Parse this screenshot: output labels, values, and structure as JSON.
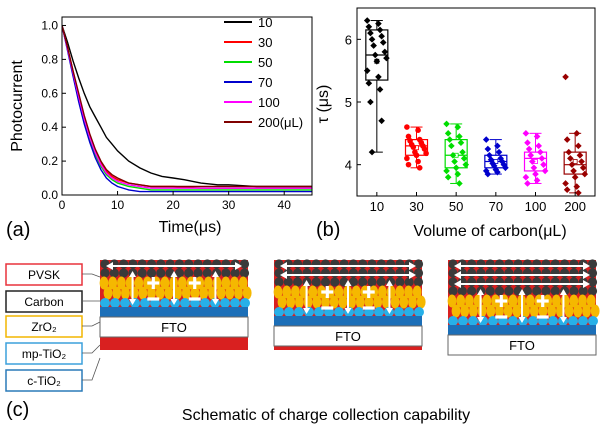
{
  "panel_a": {
    "label": "(a)",
    "xlabel": "Time(μs)",
    "ylabel": "Photocurrent",
    "xticks": [
      "0",
      "10",
      "20",
      "30",
      "40"
    ],
    "yticks": [
      "0.0",
      "0.2",
      "0.4",
      "0.6",
      "0.8",
      "1.0"
    ],
    "legend_labels": [
      "10",
      "30",
      "50",
      "70",
      "100",
      "200(μL)"
    ]
  },
  "panel_b": {
    "label": "(b)",
    "xlabel": "Volume of carbon(μL)",
    "ylabel": "τ (μs)",
    "xticks": [
      "10",
      "30",
      "50",
      "70",
      "100",
      "200"
    ],
    "yticks": [
      "4",
      "5",
      "6"
    ]
  },
  "panel_c": {
    "label": "(c)",
    "caption": "Schematic of charge collection capability",
    "layer_labels": [
      "PVSK",
      "Carbon",
      "ZrO₂",
      "mp-TiO₂",
      "c-TiO₂"
    ],
    "substrate_label": "FTO"
  },
  "chart_data": [
    {
      "type": "line",
      "title": "",
      "xlabel": "Time(μs)",
      "ylabel": "Photocurrent",
      "xlim": [
        0,
        45
      ],
      "ylim": [
        0,
        1.05
      ],
      "legend_position": "top-right",
      "series": [
        {
          "name": "10",
          "color": "#000000",
          "x": [
            0,
            1,
            2,
            3,
            4,
            5,
            6,
            7,
            8,
            9,
            10,
            12,
            14,
            16,
            18,
            20,
            22,
            25,
            28,
            30,
            35,
            40,
            45
          ],
          "y": [
            1.0,
            0.9,
            0.79,
            0.69,
            0.6,
            0.52,
            0.46,
            0.4,
            0.34,
            0.3,
            0.26,
            0.2,
            0.16,
            0.13,
            0.11,
            0.1,
            0.09,
            0.07,
            0.06,
            0.06,
            0.05,
            0.05,
            0.05
          ]
        },
        {
          "name": "30",
          "color": "#ff0000",
          "x": [
            0,
            1,
            2,
            3,
            4,
            5,
            6,
            7,
            8,
            9,
            10,
            12,
            14,
            16,
            18,
            20,
            25,
            30,
            35,
            40,
            45
          ],
          "y": [
            1.0,
            0.87,
            0.73,
            0.59,
            0.46,
            0.35,
            0.26,
            0.19,
            0.14,
            0.11,
            0.09,
            0.07,
            0.06,
            0.05,
            0.05,
            0.05,
            0.04,
            0.04,
            0.04,
            0.04,
            0.04
          ]
        },
        {
          "name": "50",
          "color": "#00dd00",
          "x": [
            0,
            1,
            2,
            3,
            4,
            5,
            6,
            7,
            8,
            9,
            10,
            12,
            14,
            16,
            18,
            20,
            25,
            30,
            35,
            40,
            45
          ],
          "y": [
            1.0,
            0.86,
            0.71,
            0.57,
            0.44,
            0.33,
            0.24,
            0.17,
            0.12,
            0.09,
            0.07,
            0.05,
            0.04,
            0.03,
            0.03,
            0.03,
            0.03,
            0.03,
            0.03,
            0.03,
            0.03
          ]
        },
        {
          "name": "70",
          "color": "#0000cc",
          "x": [
            0,
            1,
            2,
            3,
            4,
            5,
            6,
            7,
            8,
            9,
            10,
            12,
            14,
            16,
            18,
            20,
            25,
            30,
            35,
            40,
            45
          ],
          "y": [
            1.0,
            0.85,
            0.7,
            0.55,
            0.42,
            0.31,
            0.22,
            0.15,
            0.1,
            0.07,
            0.05,
            0.03,
            0.02,
            0.02,
            0.02,
            0.02,
            0.02,
            0.02,
            0.02,
            0.02,
            0.02
          ]
        },
        {
          "name": "100",
          "color": "#ff00ff",
          "x": [
            0,
            1,
            2,
            3,
            4,
            5,
            6,
            7,
            8,
            9,
            10,
            12,
            14,
            16,
            18,
            20,
            25,
            30,
            35,
            40,
            45
          ],
          "y": [
            1.0,
            0.86,
            0.72,
            0.58,
            0.45,
            0.34,
            0.25,
            0.18,
            0.13,
            0.1,
            0.08,
            0.06,
            0.05,
            0.04,
            0.04,
            0.04,
            0.04,
            0.04,
            0.04,
            0.04,
            0.04
          ]
        },
        {
          "name": "200(μL)",
          "color": "#800000",
          "x": [
            0,
            1,
            2,
            3,
            4,
            5,
            6,
            7,
            8,
            9,
            10,
            12,
            14,
            16,
            18,
            20,
            25,
            30,
            35,
            40,
            45
          ],
          "y": [
            1.0,
            0.87,
            0.73,
            0.6,
            0.47,
            0.36,
            0.27,
            0.2,
            0.15,
            0.12,
            0.1,
            0.07,
            0.06,
            0.05,
            0.05,
            0.05,
            0.05,
            0.05,
            0.05,
            0.05,
            0.05
          ]
        }
      ]
    },
    {
      "type": "scatter",
      "subtype": "box-plot-with-points",
      "title": "",
      "xlabel": "Volume of carbon(μL)",
      "ylabel": "τ (μs)",
      "ylim": [
        3.5,
        6.5
      ],
      "categories": [
        "10",
        "30",
        "50",
        "70",
        "100",
        "200"
      ],
      "series": [
        {
          "category": "10",
          "color": "#000000",
          "box": {
            "q1": 5.35,
            "median": 5.75,
            "q3": 6.15,
            "mean": 5.65,
            "whisker_low": 4.2,
            "whisker_high": 6.3
          },
          "points": [
            6.3,
            6.25,
            6.2,
            6.15,
            6.1,
            6.05,
            6.0,
            5.95,
            5.9,
            5.8,
            5.75,
            5.7,
            5.65,
            5.5,
            5.4,
            5.3,
            5.2,
            5.0,
            4.7,
            4.2
          ]
        },
        {
          "category": "30",
          "color": "#ff0000",
          "box": {
            "q1": 4.15,
            "median": 4.3,
            "q3": 4.4,
            "mean": 4.27,
            "whisker_low": 3.95,
            "whisker_high": 4.6
          },
          "points": [
            4.6,
            4.55,
            4.45,
            4.4,
            4.38,
            4.35,
            4.32,
            4.3,
            4.28,
            4.25,
            4.2,
            4.18,
            4.15,
            4.1,
            4.05,
            4.0,
            3.95
          ]
        },
        {
          "category": "50",
          "color": "#00dd00",
          "box": {
            "q1": 3.95,
            "median": 4.15,
            "q3": 4.4,
            "mean": 4.15,
            "whisker_low": 3.7,
            "whisker_high": 4.65
          },
          "points": [
            4.65,
            4.6,
            4.5,
            4.45,
            4.4,
            4.35,
            4.3,
            4.2,
            4.15,
            4.1,
            4.05,
            4.0,
            3.95,
            3.9,
            3.85,
            3.8,
            3.7
          ]
        },
        {
          "category": "70",
          "color": "#0000cc",
          "box": {
            "q1": 3.95,
            "median": 4.05,
            "q3": 4.15,
            "mean": 4.05,
            "whisker_low": 3.85,
            "whisker_high": 4.4
          },
          "points": [
            4.4,
            4.3,
            4.25,
            4.2,
            4.15,
            4.1,
            4.08,
            4.05,
            4.02,
            4.0,
            3.98,
            3.95,
            3.92,
            3.9,
            3.88,
            3.85
          ]
        },
        {
          "category": "100",
          "color": "#ff00ff",
          "box": {
            "q1": 3.9,
            "median": 4.1,
            "q3": 4.2,
            "mean": 4.05,
            "whisker_low": 3.7,
            "whisker_high": 4.5
          },
          "points": [
            4.5,
            4.45,
            4.35,
            4.3,
            4.25,
            4.2,
            4.15,
            4.1,
            4.05,
            4.0,
            3.95,
            3.9,
            3.85,
            3.8,
            3.75,
            3.7
          ]
        },
        {
          "category": "200",
          "color": "#990000",
          "box": {
            "q1": 3.85,
            "median": 4.0,
            "q3": 4.2,
            "mean": 4.05,
            "whisker_low": 3.55,
            "whisker_high": 4.5
          },
          "points": [
            5.4,
            4.5,
            4.4,
            4.3,
            4.2,
            4.15,
            4.1,
            4.05,
            4.0,
            3.95,
            3.9,
            3.85,
            3.8,
            3.7,
            3.65,
            3.6,
            3.55
          ]
        }
      ]
    }
  ]
}
